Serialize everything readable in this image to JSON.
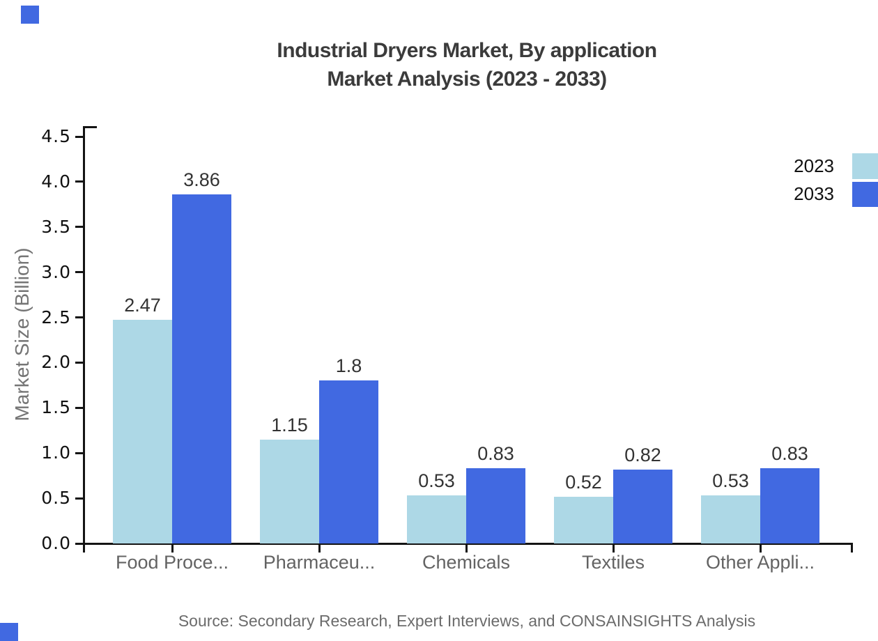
{
  "chart_data": {
    "type": "bar",
    "title_line1": "Industrial Dryers Market, By application",
    "title_line2": "Market Analysis (2023 - 2033)",
    "ylabel": "Market Size (Billion)",
    "categories": [
      "Food Proce...",
      "Pharmaceu...",
      "Chemicals",
      "Textiles",
      "Other Appli..."
    ],
    "series": [
      {
        "name": "2023",
        "color": "#ADD8E6",
        "values": [
          2.47,
          1.15,
          0.53,
          0.52,
          0.53
        ]
      },
      {
        "name": "2033",
        "color": "#4169E1",
        "values": [
          3.86,
          1.8,
          0.83,
          0.82,
          0.83
        ]
      }
    ],
    "yticks": [
      "0.0",
      "0.5",
      "1.0",
      "1.5",
      "2.0",
      "2.5",
      "3.0",
      "3.5",
      "4.0",
      "4.5"
    ],
    "ylim": [
      0,
      4.5
    ],
    "grid": false,
    "legend_position": "top-right",
    "source": "Source: Secondary Research, Expert Interviews, and CONSAINSIGHTS Analysis",
    "accent_color": "#4169E1"
  }
}
